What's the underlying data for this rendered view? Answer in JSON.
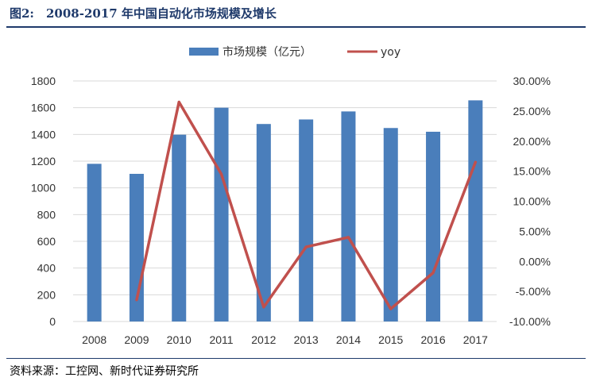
{
  "figure": {
    "title": "图2:　2008-2017 年中国自动化市场规模及增长",
    "source": "资料来源：工控网、新时代证券研究所"
  },
  "colors": {
    "bar": "#4a7ebb",
    "line": "#c0504d",
    "grid": "#d9d9d9",
    "title": "#1f3a6b"
  },
  "chart_data": {
    "type": "bar",
    "categories": [
      "2008",
      "2009",
      "2010",
      "2011",
      "2012",
      "2013",
      "2014",
      "2015",
      "2016",
      "2017"
    ],
    "series": [
      {
        "name": "市场规模（亿元）",
        "type": "bar",
        "axis": "left",
        "values": [
          1180,
          1105,
          1398,
          1600,
          1478,
          1512,
          1572,
          1448,
          1420,
          1655
        ]
      },
      {
        "name": "yoy",
        "type": "line",
        "axis": "right",
        "values": [
          null,
          -6.4,
          26.5,
          14.5,
          -7.6,
          2.4,
          4.0,
          -7.9,
          -1.9,
          16.5
        ]
      }
    ],
    "y_left": {
      "min": 0,
      "max": 1800,
      "step": 200,
      "ticks": [
        "0",
        "200",
        "400",
        "600",
        "800",
        "1000",
        "1200",
        "1400",
        "1600",
        "1800"
      ]
    },
    "y_right": {
      "min": -10,
      "max": 30,
      "step": 5,
      "ticks": [
        "-10.00%",
        "-5.00%",
        "0.00%",
        "5.00%",
        "10.00%",
        "15.00%",
        "20.00%",
        "25.00%",
        "30.00%"
      ]
    },
    "grid": true,
    "legend": "top"
  }
}
